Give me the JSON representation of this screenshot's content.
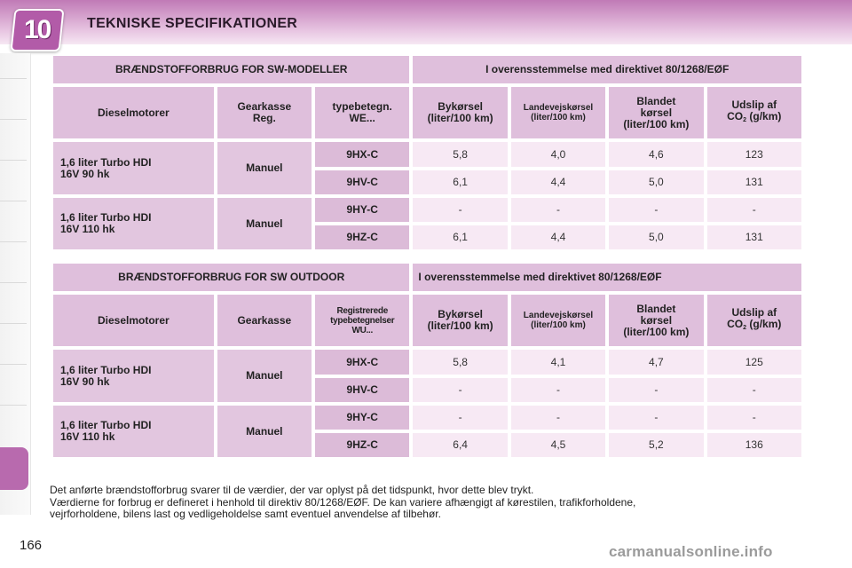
{
  "header": {
    "chapter_number": "10",
    "title": "TEKNISKE SPECIFIKATIONER"
  },
  "table1": {
    "title_left": "BRÆNDSTOFFORBRUG FOR SW-MODELLER",
    "title_right": "I overensstemmelse med direktivet 80/1268/EØF",
    "col_engine": "Dieselmotorer",
    "col_gear_1": "Gearkasse",
    "col_gear_2": "Reg.",
    "col_type_1": "typebetegn.",
    "col_type_2": "WE...",
    "col_city_1": "Bykørsel",
    "col_city_2": "(liter/100 km)",
    "col_highway_1": "Landevejskørsel",
    "col_highway_2": "(liter/100 km)",
    "col_mixed_1": "Blandet",
    "col_mixed_2": "kørsel",
    "col_mixed_3": "(liter/100 km)",
    "col_co2_1": "Udslip af",
    "col_co2_2": "CO",
    "col_co2_sub": "2",
    "col_co2_3": "(g/km)",
    "groups": [
      {
        "engine_1": "1,6 liter Turbo HDI",
        "engine_2": "16V 90 hk",
        "gear": "Manuel",
        "rows": [
          {
            "code": "9HX-C",
            "city": "5,8",
            "highway": "4,0",
            "mixed": "4,6",
            "co2": "123"
          },
          {
            "code": "9HV-C",
            "city": "6,1",
            "highway": "4,4",
            "mixed": "5,0",
            "co2": "131"
          }
        ]
      },
      {
        "engine_1": "1,6 liter Turbo HDI",
        "engine_2": "16V 110 hk",
        "gear": "Manuel",
        "rows": [
          {
            "code": "9HY-C",
            "city": "-",
            "highway": "-",
            "mixed": "-",
            "co2": "-"
          },
          {
            "code": "9HZ-C",
            "city": "6,1",
            "highway": "4,4",
            "mixed": "5,0",
            "co2": "131"
          }
        ]
      }
    ]
  },
  "table2": {
    "title_left": "BRÆNDSTOFFORBRUG FOR SW OUTDOOR",
    "title_right": "I overensstemmelse med direktivet 80/1268/EØF",
    "col_engine": "Dieselmotorer",
    "col_gear": "Gearkasse",
    "col_type_1": "Registrerede",
    "col_type_2": "typebetegnelser",
    "col_type_3": "WU...",
    "col_city_1": "Bykørsel",
    "col_city_2": "(liter/100 km)",
    "col_highway_1": "Landevejskørsel",
    "col_highway_2": "(liter/100 km)",
    "col_mixed_1": "Blandet",
    "col_mixed_2": "kørsel",
    "col_mixed_3": "(liter/100 km)",
    "col_co2_1": "Udslip af",
    "col_co2_2": "CO",
    "col_co2_sub": "2",
    "col_co2_3": "(g/km)",
    "groups": [
      {
        "engine_1": "1,6 liter Turbo HDI",
        "engine_2": "16V 90 hk",
        "gear": "Manuel",
        "rows": [
          {
            "code": "9HX-C",
            "city": "5,8",
            "highway": "4,1",
            "mixed": "4,7",
            "co2": "125"
          },
          {
            "code": "9HV-C",
            "city": "-",
            "highway": "-",
            "mixed": "-",
            "co2": "-"
          }
        ]
      },
      {
        "engine_1": "1,6 liter Turbo HDI",
        "engine_2": "16V 110 hk",
        "gear": "Manuel",
        "rows": [
          {
            "code": "9HY-C",
            "city": "-",
            "highway": "-",
            "mixed": "-",
            "co2": "-"
          },
          {
            "code": "9HZ-C",
            "city": "6,4",
            "highway": "4,5",
            "mixed": "5,2",
            "co2": "136"
          }
        ]
      }
    ]
  },
  "footnote": {
    "line1": "Det anførte brændstofforbrug svarer til de værdier, der var oplyst på det tidspunkt, hvor dette blev trykt.",
    "line2": "Værdierne for forbrug er defineret i henhold til direktiv 80/1268/EØF. De kan variere afhængigt af kørestilen, trafikforholdene,",
    "line3": "vejrforholdene, bilens last og vedligeholdelse samt eventuel anvendelse af tilbehør."
  },
  "page_number": "166",
  "watermark": "carmanualsonline.info",
  "colors": {
    "accent": "#b25ba8",
    "header_cell": "#dfbfdc",
    "value_cell": "#f7e9f4"
  }
}
